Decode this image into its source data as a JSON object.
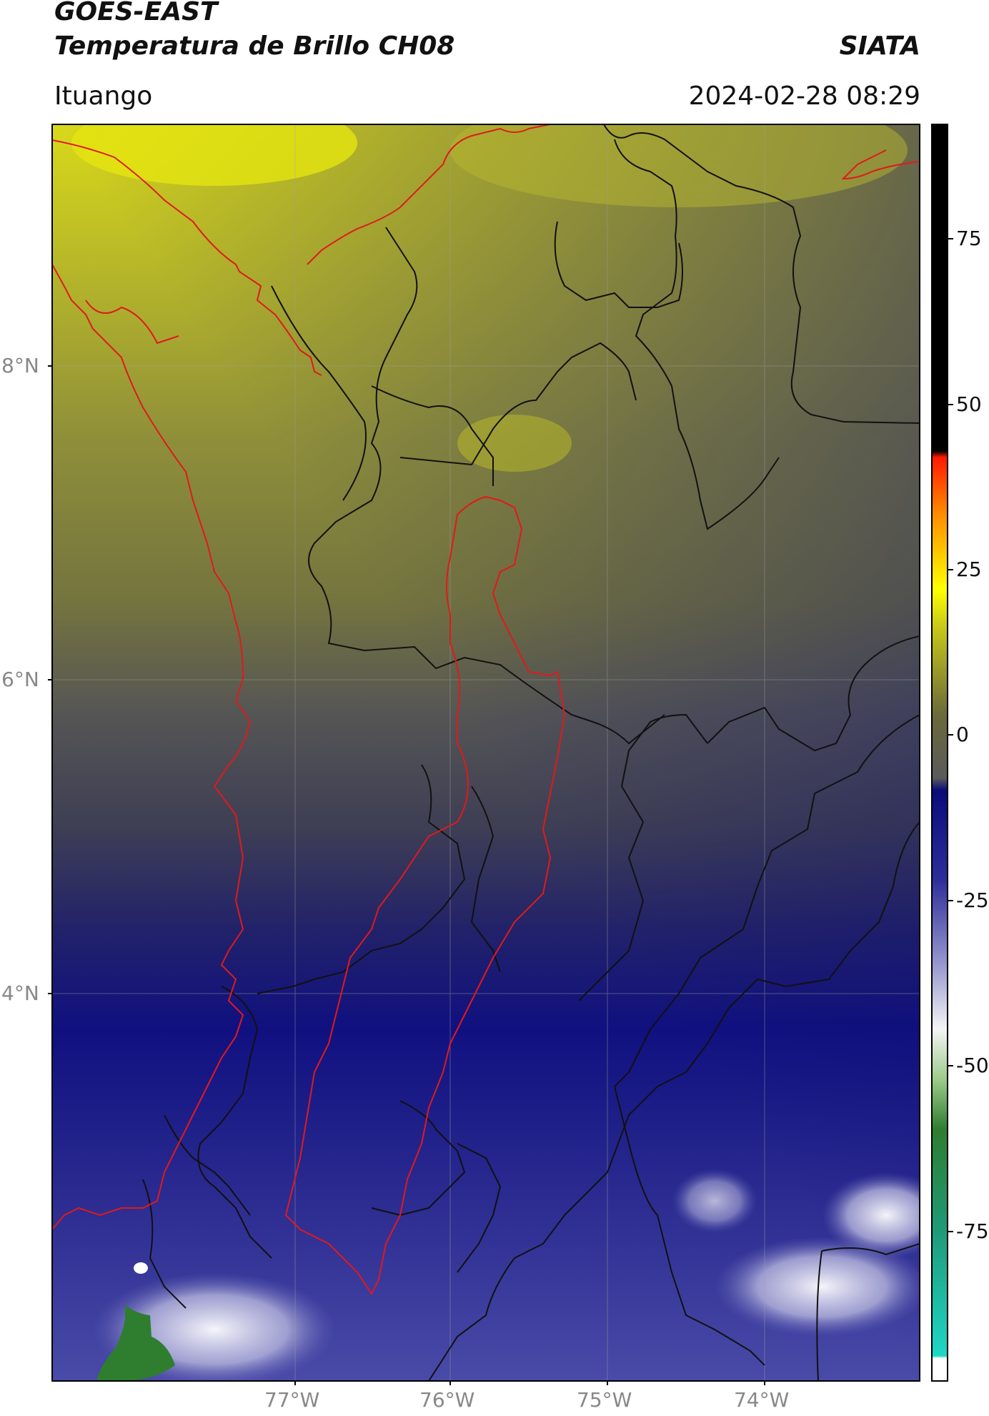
{
  "header": {
    "satellite": "GOES-EAST",
    "product": "Temperatura de Brillo CH08",
    "agency": "SIATA",
    "region": "Ituango",
    "datetime": "2024-02-28 08:29"
  },
  "map": {
    "lat_ticks": [
      "8°N",
      "6°N",
      "4°N"
    ],
    "lon_ticks": [
      "77°W",
      "76°W",
      "75°W",
      "74°W"
    ]
  },
  "colorbar": {
    "ticks": [
      "75",
      "50",
      "25",
      "0",
      "-25",
      "-50",
      "-75"
    ],
    "colors": {
      "high": "#000000",
      "red": "#ff1a00",
      "yellow": "#ffff00",
      "olive": "#6a6a3a",
      "navy": "#0b0b7a",
      "white": "#f4f4f4",
      "green": "#2f7d2f",
      "cyan": "#1fd6c6"
    }
  }
}
